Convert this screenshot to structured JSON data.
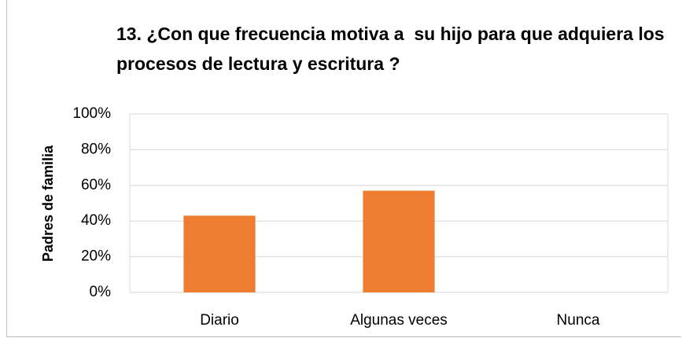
{
  "chart_data": {
    "type": "bar",
    "title": "13. ¿Con que frecuencia motiva a  su hijo para que adquiera los procesos de lectura y escritura ?",
    "y_label": "Padres de familia",
    "categories": [
      "Diario",
      "Algunas veces",
      "Nunca"
    ],
    "values": [
      43,
      57,
      0
    ],
    "color": "#ed7d31",
    "ylim": [
      0,
      100
    ],
    "yticks": [
      {
        "value": 0,
        "label": "0%"
      },
      {
        "value": 20,
        "label": "20%"
      },
      {
        "value": 40,
        "label": "40%"
      },
      {
        "value": 60,
        "label": "60%"
      },
      {
        "value": 80,
        "label": "80%"
      },
      {
        "value": 100,
        "label": "100%"
      }
    ],
    "grid": true
  }
}
